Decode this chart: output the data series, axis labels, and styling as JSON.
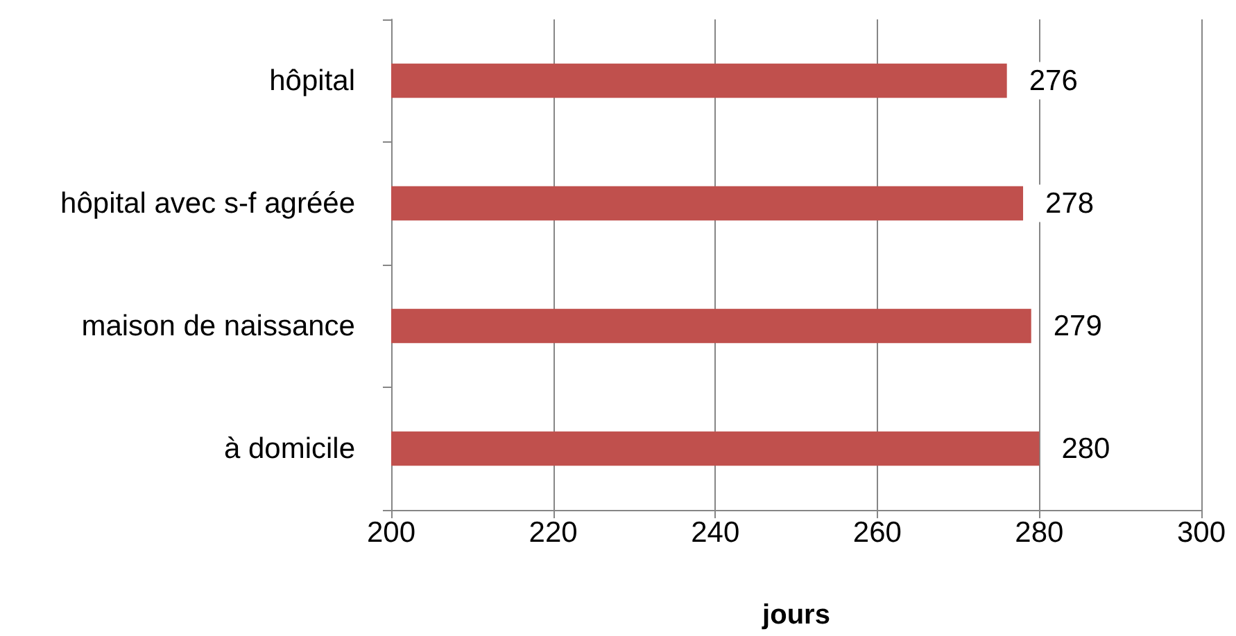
{
  "chart_data": {
    "type": "bar",
    "orientation": "horizontal",
    "xlabel": "jours",
    "categories": [
      "hôpital",
      "hôpital avec s-f agréée",
      "maison de naissance",
      "à domicile"
    ],
    "values": [
      276,
      278,
      279,
      280
    ],
    "color": "#c0504d",
    "xlim": [
      200,
      300
    ],
    "xticks": [
      200,
      220,
      240,
      260,
      280,
      300
    ],
    "grid": "x",
    "data_labels": true
  }
}
